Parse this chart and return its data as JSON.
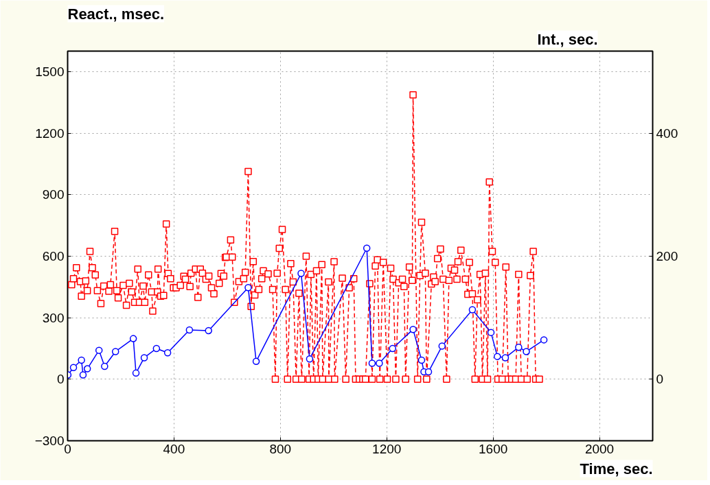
{
  "chart_data": {
    "type": "line",
    "xlabel": "Time, sec.",
    "ylabel": "React., msec.",
    "y2label": "Int., sec.",
    "xlim": [
      0,
      2200
    ],
    "xticks": [
      0,
      400,
      800,
      1200,
      1600,
      2000
    ],
    "ylim": [
      -300,
      1600
    ],
    "yticks": [
      -300,
      0,
      300,
      600,
      900,
      1200,
      1500
    ],
    "y2lim": [
      -100,
      533.3
    ],
    "y2ticks": [
      0,
      200,
      400
    ],
    "grid": true,
    "series": [
      {
        "color": "#ff0000",
        "marker": "square",
        "line_style": "dashed",
        "x": [
          15,
          22,
          33,
          48,
          52,
          68,
          74,
          84,
          93,
          104,
          112,
          125,
          136,
          155,
          161,
          177,
          185,
          190,
          209,
          221,
          232,
          241,
          252,
          264,
          270,
          284,
          290,
          304,
          316,
          320,
          338,
          340,
          350,
          361,
          371,
          378,
          387,
          398,
          408,
          424,
          437,
          443,
          460,
          464,
          481,
          490,
          499,
          507,
          520,
          531,
          541,
          550,
          570,
          577,
          587,
          593,
          597,
          613,
          619,
          627,
          644,
          662,
          668,
          679,
          690,
          698,
          704,
          719,
          730,
          736,
          754,
          771,
          781,
          788,
          796,
          807,
          819,
          827,
          839,
          848,
          859,
          870,
          880,
          897,
          908,
          915,
          925,
          936,
          942,
          956,
          959,
          981,
          982,
          1002,
          1004,
          1033,
          1046,
          1059,
          1076,
          1083,
          1097,
          1110,
          1120,
          1136,
          1145,
          1157,
          1165,
          1174,
          1187,
          1202,
          1215,
          1224,
          1234,
          1245,
          1259,
          1265,
          1271,
          1285,
          1296,
          1299,
          1316,
          1325,
          1331,
          1345,
          1350,
          1368,
          1376,
          1382,
          1391,
          1402,
          1412,
          1425,
          1434,
          1442,
          1455,
          1464,
          1468,
          1479,
          1496,
          1505,
          1511,
          1522,
          1532,
          1541,
          1551,
          1560,
          1571,
          1579,
          1586,
          1597,
          1608,
          1618,
          1634,
          1648,
          1657,
          1670,
          1685,
          1696,
          1706,
          1728,
          1740,
          1751,
          1760,
          1774
        ],
        "values": [
          461,
          490,
          544,
          476,
          405,
          479,
          432,
          623,
          544,
          509,
          432,
          369,
          454,
          429,
          461,
          721,
          432,
          397,
          458,
          361,
          468,
          426,
          375,
          537,
          375,
          454,
          375,
          509,
          426,
          332,
          426,
          537,
          405,
          408,
          757,
          515,
          490,
          446,
          446,
          458,
          502,
          488,
          452,
          517,
          537,
          399,
          537,
          517,
          488,
          503,
          446,
          417,
          468,
          515,
          503,
          594,
          596,
          679,
          596,
          375,
          476,
          490,
          521,
          1013,
          355,
          574,
          411,
          438,
          490,
          529,
          514,
          438,
          0,
          517,
          638,
          730,
          438,
          0,
          564,
          474,
          0,
          419,
          0,
          600,
          0,
          511,
          0,
          529,
          0,
          559,
          0,
          474,
          0,
          573,
          0,
          493,
          0,
          446,
          490,
          0,
          0,
          0,
          0,
          466,
          0,
          552,
          582,
          0,
          570,
          0,
          541,
          488,
          0,
          470,
          488,
          452,
          0,
          547,
          482,
          1387,
          0,
          505,
          765,
          517,
          0,
          464,
          499,
          476,
          588,
          635,
          488,
          0,
          482,
          541,
          532,
          488,
          573,
          629,
          488,
          414,
          570,
          417,
          0,
          387,
          511,
          0,
          517,
          0,
          962,
          623,
          570,
          0,
          0,
          547,
          0,
          0,
          0,
          511,
          0,
          0,
          505,
          623,
          0,
          0
        ]
      },
      {
        "color": "#0000ff",
        "marker": "circle",
        "line_style": "solid",
        "axis": "y2",
        "x": [
          1,
          22,
          52,
          58,
          74,
          118,
          139,
          180,
          247,
          257,
          288,
          334,
          376,
          458,
          530,
          679,
          709,
          878,
          910,
          1125,
          1145,
          1172,
          1222,
          1299,
          1331,
          1340,
          1357,
          1408,
          1522,
          1592,
          1616,
          1646,
          1696,
          1725,
          1791
        ],
        "values": [
          7,
          19,
          31,
          7,
          17,
          47,
          21,
          45,
          66,
          10,
          35,
          50,
          43,
          80,
          79,
          149,
          29,
          172,
          33,
          213,
          26,
          26,
          50,
          81,
          31,
          12,
          12,
          54,
          113,
          76,
          37,
          35,
          52,
          45,
          64
        ]
      }
    ]
  }
}
